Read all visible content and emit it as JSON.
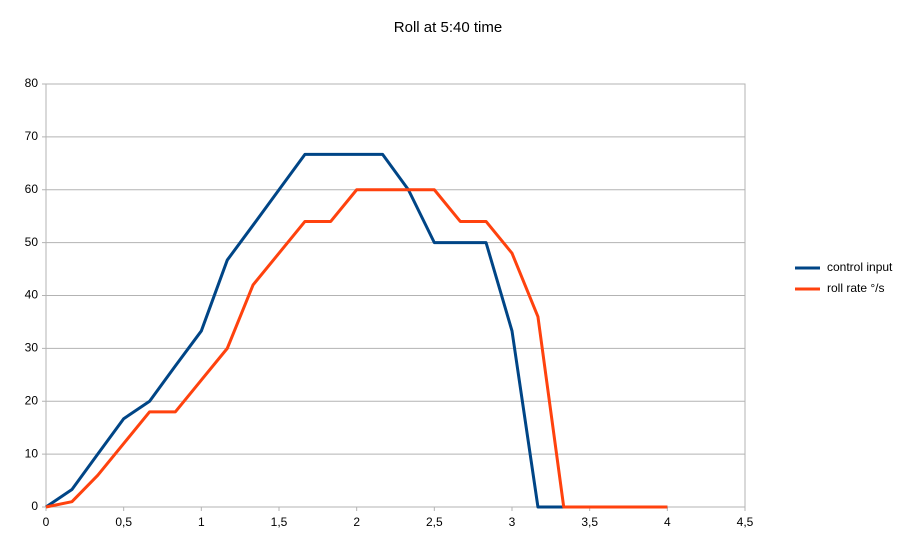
{
  "chart_data": {
    "type": "line",
    "title": "Roll at 5:40 time",
    "x": [
      0,
      0.167,
      0.333,
      0.5,
      0.667,
      0.833,
      1,
      1.167,
      1.333,
      1.5,
      1.667,
      1.833,
      2,
      2.167,
      2.333,
      2.5,
      2.667,
      2.833,
      3,
      3.167,
      3.333,
      3.5,
      3.667,
      3.833,
      4
    ],
    "series": [
      {
        "name": "control input",
        "color": "#004586",
        "values": [
          0,
          3.3,
          10,
          16.7,
          20,
          26.7,
          33.3,
          46.7,
          53.3,
          60,
          66.7,
          66.7,
          66.7,
          66.7,
          60,
          50,
          50,
          50,
          33.3,
          0,
          0,
          0,
          0,
          0,
          0
        ]
      },
      {
        "name": "roll rate °/s",
        "color": "#ff420e",
        "values": [
          0,
          1,
          6,
          12,
          18,
          18,
          24,
          30,
          42,
          48,
          54,
          54,
          60,
          60,
          60,
          60,
          54,
          54,
          48,
          36,
          0,
          0,
          0,
          0,
          0
        ]
      }
    ],
    "xlim": [
      0,
      4.5
    ],
    "xticks": [
      0,
      {
        "value": 0.5,
        "label": "0,5"
      },
      1,
      {
        "value": 1.5,
        "label": "1,5"
      },
      2,
      {
        "value": 2.5,
        "label": "2,5"
      },
      3,
      {
        "value": 3.5,
        "label": "3,5"
      },
      4,
      {
        "value": 4.5,
        "label": "4,5"
      }
    ],
    "ylim": [
      0,
      80
    ],
    "yticks": [
      0,
      10,
      20,
      30,
      40,
      50,
      60,
      70,
      80
    ],
    "grid": true,
    "legend": "right"
  }
}
